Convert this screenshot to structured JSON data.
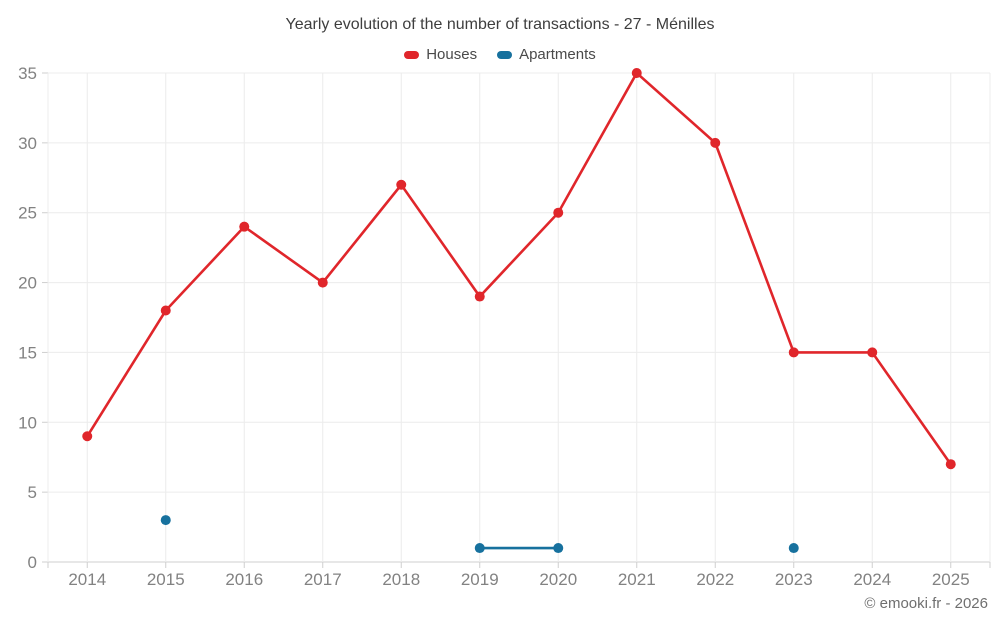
{
  "title": "Yearly evolution of the number of transactions - 27 - Ménilles",
  "footer": "© emooki.fr - 2026",
  "chart_data": {
    "type": "line",
    "title": "Yearly evolution of the number of transactions - 27 - Ménilles",
    "categories": [
      "2014",
      "2015",
      "2016",
      "2017",
      "2018",
      "2019",
      "2020",
      "2021",
      "2022",
      "2023",
      "2024",
      "2025"
    ],
    "series": [
      {
        "name": "Houses",
        "color": "#e0262b",
        "values": [
          9,
          18,
          24,
          20,
          27,
          19,
          25,
          35,
          30,
          15,
          15,
          7
        ]
      },
      {
        "name": "Apartments",
        "color": "#17719e",
        "values": [
          null,
          3,
          null,
          null,
          null,
          1,
          1,
          null,
          null,
          1,
          null,
          null
        ]
      }
    ],
    "xlabel": "",
    "ylabel": "",
    "ylim": [
      0,
      35
    ],
    "ytick_step": 5,
    "grid": true,
    "legend_position": "top"
  },
  "colors": {
    "houses": "#e0262b",
    "apartments": "#17719e",
    "grid": "#ececec",
    "axis_line": "#cfcfcf",
    "tick_text": "#828282"
  }
}
